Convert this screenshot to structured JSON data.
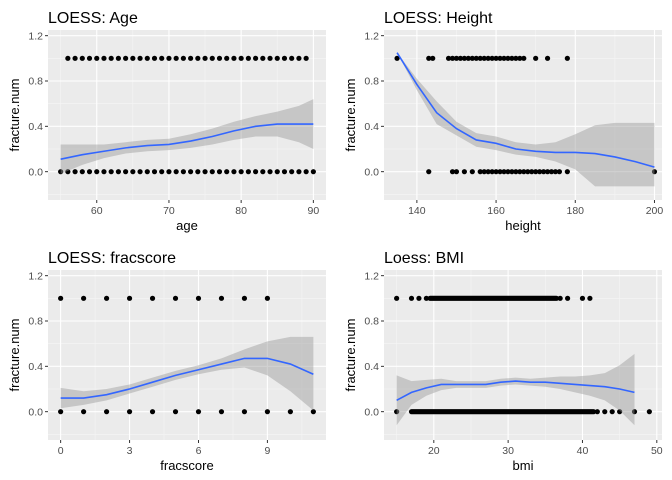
{
  "chart_data": [
    {
      "type": "scatter",
      "title": "LOESS: Age",
      "xlabel": "age",
      "ylabel": "fracture.num",
      "xlim": [
        53.25,
        91.75
      ],
      "ylim": [
        -0.25,
        1.25
      ],
      "xticks": [
        60,
        70,
        80,
        90
      ],
      "yticks": [
        0.0,
        0.4,
        0.8,
        1.2
      ],
      "grid": true,
      "points": {
        "y1": [
          56,
          57,
          58,
          59,
          60,
          61,
          62,
          63,
          64,
          65,
          66,
          67,
          68,
          69,
          70,
          71,
          72,
          73,
          74,
          75,
          76,
          77,
          78,
          79,
          80,
          81,
          82,
          83,
          84,
          85,
          86,
          87,
          88,
          89
        ],
        "y0": [
          55,
          56,
          57,
          58,
          59,
          60,
          61,
          62,
          63,
          64,
          65,
          66,
          67,
          68,
          69,
          70,
          71,
          72,
          73,
          74,
          75,
          76,
          77,
          78,
          79,
          80,
          81,
          82,
          83,
          84,
          85,
          86,
          87,
          88,
          89,
          90
        ]
      },
      "smooth": {
        "x": [
          55,
          58,
          61,
          64,
          67,
          70,
          73,
          76,
          79,
          82,
          85,
          88,
          90
        ],
        "y": [
          0.11,
          0.15,
          0.18,
          0.21,
          0.23,
          0.24,
          0.27,
          0.31,
          0.36,
          0.4,
          0.42,
          0.42,
          0.42
        ],
        "lower": [
          -0.02,
          0.06,
          0.12,
          0.16,
          0.18,
          0.19,
          0.21,
          0.24,
          0.28,
          0.31,
          0.31,
          0.26,
          0.2
        ],
        "upper": [
          0.24,
          0.24,
          0.24,
          0.26,
          0.28,
          0.29,
          0.33,
          0.38,
          0.44,
          0.49,
          0.53,
          0.58,
          0.64
        ]
      }
    },
    {
      "type": "scatter",
      "title": "LOESS: Height",
      "xlabel": "height",
      "ylabel": "fracture.num",
      "xlim": [
        131.7,
        201.9
      ],
      "ylim": [
        -0.25,
        1.25
      ],
      "xticks": [
        140,
        160,
        180,
        200
      ],
      "yticks": [
        0.0,
        0.4,
        0.8,
        1.2
      ],
      "grid": true,
      "points": {
        "y1": [
          135,
          143,
          144,
          148,
          149,
          150,
          151,
          152,
          153,
          154,
          155,
          156,
          157,
          158,
          159,
          160,
          161,
          162,
          163,
          164,
          165,
          166,
          167,
          170,
          173,
          178
        ],
        "y0": [
          143,
          149,
          150,
          152,
          154,
          156,
          157,
          158,
          159,
          160,
          161,
          162,
          163,
          164,
          165,
          166,
          167,
          168,
          169,
          170,
          171,
          172,
          173,
          174,
          175,
          176,
          178,
          200
        ]
      },
      "smooth": {
        "x": [
          135,
          140,
          145,
          150,
          155,
          160,
          165,
          170,
          175,
          180,
          185,
          190,
          195,
          200
        ],
        "y": [
          1.05,
          0.77,
          0.52,
          0.38,
          0.28,
          0.25,
          0.2,
          0.18,
          0.17,
          0.17,
          0.16,
          0.13,
          0.09,
          0.04
        ],
        "lower": [
          1.05,
          0.72,
          0.42,
          0.32,
          0.22,
          0.19,
          0.15,
          0.13,
          0.09,
          0.02,
          -0.13,
          -0.13,
          -0.13,
          -0.13
        ],
        "upper": [
          1.05,
          0.82,
          0.62,
          0.44,
          0.34,
          0.31,
          0.26,
          0.24,
          0.26,
          0.33,
          0.41,
          0.43,
          0.43,
          0.43
        ]
      }
    },
    {
      "type": "scatter",
      "title": "LOESS: fracscore",
      "xlabel": "fracscore",
      "ylabel": "fracture.num",
      "xlim": [
        -0.55,
        11.55
      ],
      "ylim": [
        -0.25,
        1.25
      ],
      "xticks": [
        0,
        3,
        6,
        9
      ],
      "yticks": [
        0.0,
        0.4,
        0.8,
        1.2
      ],
      "grid": true,
      "points": {
        "y1": [
          0,
          1,
          2,
          3,
          4,
          5,
          6,
          7,
          8,
          9
        ],
        "y0": [
          0,
          1,
          2,
          3,
          4,
          5,
          6,
          7,
          8,
          9,
          10,
          11
        ]
      },
      "smooth": {
        "x": [
          0,
          1,
          2,
          3,
          4,
          5,
          6,
          7,
          8,
          9,
          10,
          11
        ],
        "y": [
          0.12,
          0.12,
          0.15,
          0.2,
          0.26,
          0.32,
          0.37,
          0.42,
          0.47,
          0.47,
          0.42,
          0.33
        ],
        "lower": [
          0.03,
          0.06,
          0.1,
          0.16,
          0.22,
          0.28,
          0.33,
          0.37,
          0.39,
          0.32,
          0.18,
          0.01
        ],
        "upper": [
          0.21,
          0.18,
          0.2,
          0.24,
          0.3,
          0.36,
          0.41,
          0.47,
          0.55,
          0.62,
          0.66,
          0.66
        ]
      }
    },
    {
      "type": "scatter",
      "title": "Loess: BMI",
      "xlabel": "bmi",
      "ylabel": "fracture.num",
      "xlim": [
        13.3,
        50.7
      ],
      "ylim": [
        -0.25,
        1.25
      ],
      "xticks": [
        20,
        30,
        40,
        50
      ],
      "yticks": [
        0.0,
        0.4,
        0.8,
        1.2
      ],
      "grid": true,
      "points": {
        "y1_single": [
          15,
          17,
          18,
          19,
          37,
          38,
          40,
          41
        ],
        "y1_range": [
          19.5,
          36.5
        ],
        "y0_single": [
          15,
          42,
          43,
          44,
          45,
          47,
          49
        ],
        "y0_range": [
          17,
          41.5
        ]
      },
      "smooth": {
        "x": [
          15,
          17,
          19,
          21,
          23,
          25,
          27,
          29,
          31,
          33,
          35,
          37,
          39,
          41,
          43,
          45,
          47
        ],
        "y": [
          0.1,
          0.17,
          0.21,
          0.24,
          0.24,
          0.24,
          0.24,
          0.26,
          0.27,
          0.26,
          0.26,
          0.25,
          0.24,
          0.23,
          0.22,
          0.2,
          0.17
        ],
        "lower": [
          -0.12,
          0.06,
          0.14,
          0.19,
          0.21,
          0.21,
          0.21,
          0.23,
          0.24,
          0.23,
          0.22,
          0.2,
          0.17,
          0.14,
          0.1,
          0.01,
          -0.12
        ],
        "upper": [
          0.32,
          0.27,
          0.28,
          0.29,
          0.27,
          0.27,
          0.27,
          0.29,
          0.3,
          0.29,
          0.3,
          0.31,
          0.31,
          0.32,
          0.34,
          0.41,
          0.51
        ]
      }
    }
  ],
  "colors": {
    "panel_bg": "#ebebeb",
    "grid_major": "#ffffff",
    "grid_minor": "#f5f5f5",
    "smooth_line": "#3366ff",
    "ribbon": "#999999",
    "point": "#000000",
    "tick_text": "#4d4d4d"
  }
}
